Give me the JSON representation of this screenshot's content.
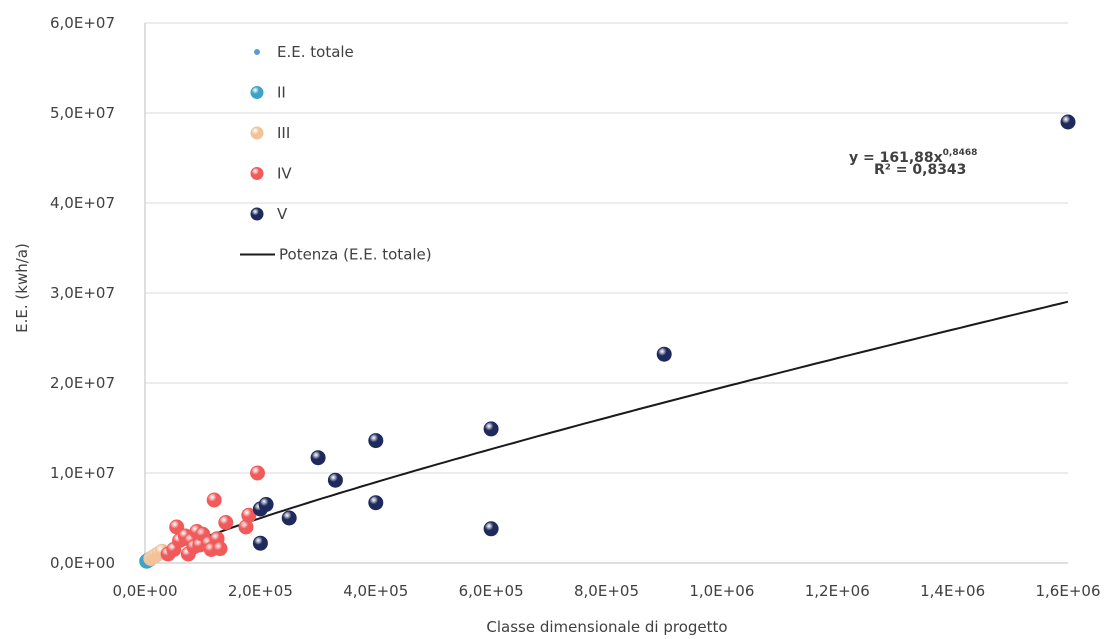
{
  "chart_data": {
    "type": "scatter",
    "xlabel": "Classe dimensionale di progetto",
    "ylabel": "E.E. (kwh/a)",
    "xlim": [
      0,
      1600000
    ],
    "ylim": [
      0,
      60000000
    ],
    "x_ticks": [
      0,
      200000,
      400000,
      600000,
      800000,
      1000000,
      1200000,
      1400000,
      1600000
    ],
    "x_tick_labels": [
      "0,0E+00",
      "2,0E+05",
      "4,0E+05",
      "6,0E+05",
      "8,0E+05",
      "1,0E+06",
      "1,2E+06",
      "1,4E+06",
      "1,6E+06"
    ],
    "y_ticks": [
      0,
      10000000,
      20000000,
      30000000,
      40000000,
      50000000,
      60000000
    ],
    "y_tick_labels": [
      "0,0E+00",
      "1,0E+07",
      "2,0E+07",
      "3,0E+07",
      "4,0E+07",
      "5,0E+07",
      "6,0E+07"
    ],
    "grid": true,
    "legend_position": "top-left",
    "series": [
      {
        "name": "E.E. totale",
        "color": "#5b9bd5",
        "marker": "small-dot",
        "x": [
          0,
          2000,
          5000
        ],
        "y": [
          0,
          100000,
          300000
        ]
      },
      {
        "name": "II",
        "color": "#3ca3c8",
        "marker": "circle",
        "x": [
          3000,
          5000,
          8000
        ],
        "y": [
          200000,
          300000,
          400000
        ]
      },
      {
        "name": "III",
        "color": "#f2c39a",
        "marker": "circle",
        "x": [
          10000,
          15000,
          20000,
          25000,
          30000
        ],
        "y": [
          500000,
          700000,
          900000,
          1100000,
          1300000
        ]
      },
      {
        "name": "IV",
        "color": "#f05a5a",
        "marker": "circle",
        "x": [
          40000,
          50000,
          55000,
          60000,
          70000,
          75000,
          80000,
          85000,
          90000,
          95000,
          100000,
          110000,
          115000,
          120000,
          125000,
          130000,
          140000,
          175000,
          180000,
          195000
        ],
        "y": [
          1000000,
          1500000,
          4000000,
          2500000,
          3000000,
          1000000,
          2500000,
          1800000,
          3500000,
          2000000,
          3200000,
          2200000,
          1500000,
          7000000,
          2700000,
          1600000,
          4500000,
          4000000,
          5300000,
          10000000
        ]
      },
      {
        "name": "V",
        "color": "#1f2a5c",
        "marker": "circle",
        "x": [
          200000,
          200000,
          210000,
          250000,
          300000,
          330000,
          400000,
          400000,
          600000,
          600000,
          900000,
          1600000
        ],
        "y": [
          6000000,
          2200000,
          6500000,
          5000000,
          11700000,
          9200000,
          13600000,
          6700000,
          14900000,
          3800000,
          23200000,
          49000000
        ]
      }
    ],
    "trendline": {
      "name": "Potenza (E.E. totale)",
      "type": "power",
      "a": 161.88,
      "b": 0.8468,
      "color": "#1a1a1a",
      "x_range": [
        2000,
        1600000
      ],
      "equation": "y = 161,88x",
      "exponent": "0,8468",
      "r2": "R² = 0,8343"
    }
  }
}
